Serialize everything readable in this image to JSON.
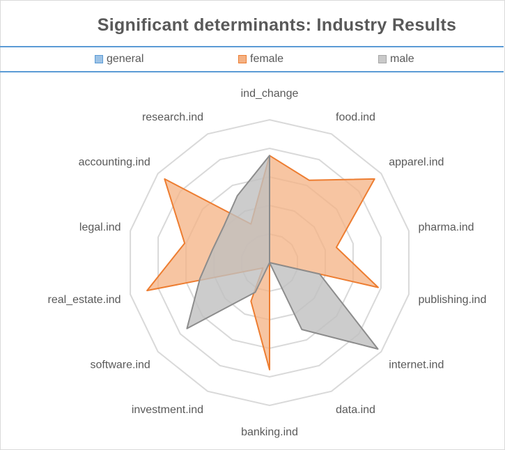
{
  "chart_data": {
    "type": "radar",
    "title": "Significant  determinants: Industry Results",
    "categories": [
      "ind_change",
      "food.ind",
      "apparel.ind",
      "pharma.ind",
      "publishing.ind",
      "internet.ind",
      "data.ind",
      "banking.ind",
      "investment.ind",
      "software.ind",
      "real_estate.ind",
      "legal.ind",
      "accounting.ind",
      "research.ind"
    ],
    "rlim": [
      0,
      1
    ],
    "grid": true,
    "legend_position": "top",
    "series": [
      {
        "name": "general",
        "color": "#5b9bd5",
        "values": [
          0,
          0,
          0,
          0,
          0,
          0,
          0,
          0,
          0,
          0,
          0,
          0,
          0,
          0
        ]
      },
      {
        "name": "female",
        "color": "#ed7d31",
        "values": [
          0.75,
          0.64,
          0.94,
          0.48,
          0.78,
          0.0,
          0.0,
          0.75,
          0.3,
          0.06,
          0.88,
          0.61,
          0.94,
          0.3
        ]
      },
      {
        "name": "male",
        "color": "#a5a5a5",
        "values": [
          0.75,
          0.0,
          0.0,
          0.0,
          0.36,
          0.97,
          0.52,
          0.0,
          0.23,
          0.74,
          0.5,
          0.41,
          0.41,
          0.52
        ]
      }
    ]
  }
}
